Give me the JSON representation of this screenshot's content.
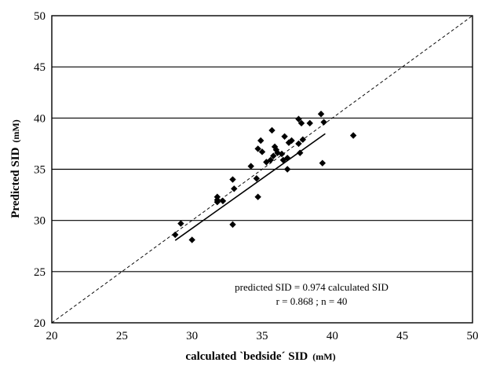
{
  "chart_data": {
    "type": "scatter",
    "xlabel": "calculated `bedside´ SID",
    "xlabel_unit": "(mM)",
    "ylabel": "Predicted SID",
    "ylabel_unit": "(mM)",
    "xlim": [
      20,
      50
    ],
    "ylim": [
      20,
      50
    ],
    "x_ticks": [
      20,
      25,
      30,
      35,
      40,
      45,
      50
    ],
    "y_ticks": [
      20,
      25,
      30,
      35,
      40,
      45,
      50
    ],
    "grid": "horizontal",
    "marker": "diamond",
    "annotation": {
      "line1": "predicted SID = 0.974 calculated SID",
      "line2": "r = 0.868 ; n = 40"
    },
    "identity_line": {
      "from": [
        20,
        20
      ],
      "to": [
        50,
        50
      ],
      "style": "dashed"
    },
    "fit_line": {
      "slope": 0.974,
      "x_range": [
        28.8,
        39.5
      ],
      "style": "solid"
    },
    "points": [
      {
        "x": 28.8,
        "y": 28.6
      },
      {
        "x": 29.2,
        "y": 29.7
      },
      {
        "x": 30.0,
        "y": 28.1
      },
      {
        "x": 31.8,
        "y": 31.8
      },
      {
        "x": 31.8,
        "y": 32.0
      },
      {
        "x": 31.8,
        "y": 32.3
      },
      {
        "x": 32.2,
        "y": 31.9
      },
      {
        "x": 32.9,
        "y": 29.6
      },
      {
        "x": 32.9,
        "y": 34.0
      },
      {
        "x": 33.0,
        "y": 33.1
      },
      {
        "x": 34.2,
        "y": 35.3
      },
      {
        "x": 34.6,
        "y": 34.1
      },
      {
        "x": 34.7,
        "y": 32.3
      },
      {
        "x": 34.7,
        "y": 37.0
      },
      {
        "x": 34.9,
        "y": 37.8
      },
      {
        "x": 35.0,
        "y": 36.7
      },
      {
        "x": 35.3,
        "y": 35.7
      },
      {
        "x": 35.6,
        "y": 35.9
      },
      {
        "x": 35.7,
        "y": 38.8
      },
      {
        "x": 35.8,
        "y": 36.3
      },
      {
        "x": 35.9,
        "y": 37.2
      },
      {
        "x": 36.0,
        "y": 36.9
      },
      {
        "x": 36.1,
        "y": 36.6
      },
      {
        "x": 36.4,
        "y": 36.5
      },
      {
        "x": 36.5,
        "y": 35.9
      },
      {
        "x": 36.6,
        "y": 38.2
      },
      {
        "x": 36.8,
        "y": 36.1
      },
      {
        "x": 36.8,
        "y": 35.0
      },
      {
        "x": 36.9,
        "y": 37.6
      },
      {
        "x": 37.1,
        "y": 37.8
      },
      {
        "x": 37.6,
        "y": 39.9
      },
      {
        "x": 37.6,
        "y": 37.5
      },
      {
        "x": 37.7,
        "y": 36.6
      },
      {
        "x": 37.8,
        "y": 39.5
      },
      {
        "x": 37.9,
        "y": 37.9
      },
      {
        "x": 38.4,
        "y": 39.5
      },
      {
        "x": 39.2,
        "y": 40.4
      },
      {
        "x": 39.3,
        "y": 35.6
      },
      {
        "x": 39.4,
        "y": 39.6
      },
      {
        "x": 41.5,
        "y": 38.3
      }
    ]
  }
}
